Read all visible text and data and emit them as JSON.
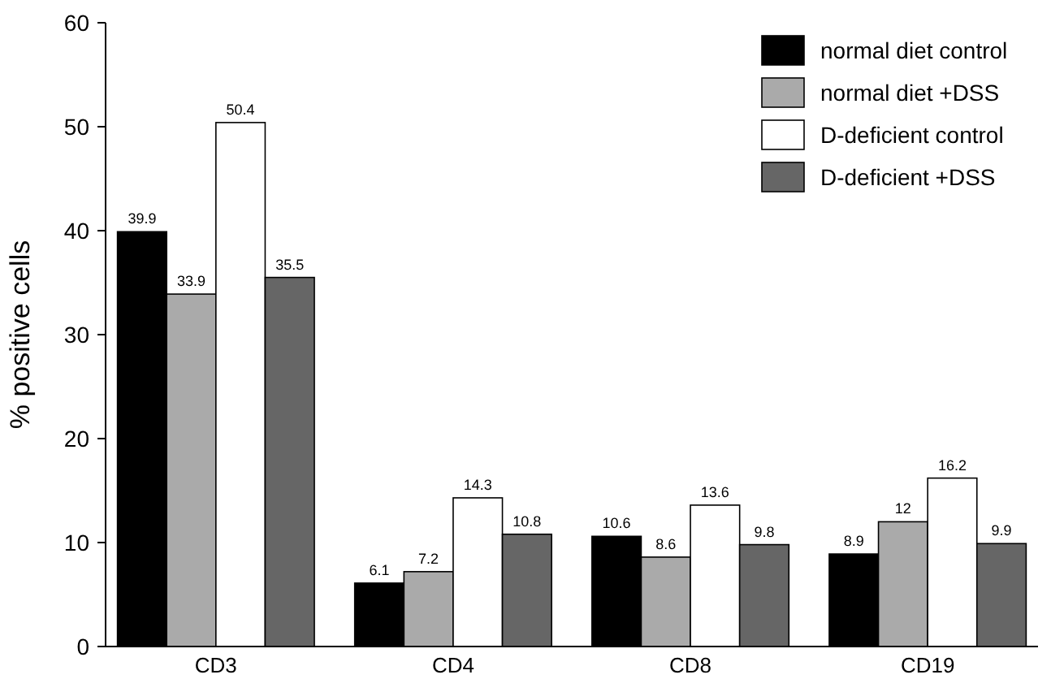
{
  "chart_data": {
    "type": "bar",
    "ylabel": "% positive cells",
    "categories": [
      "CD3",
      "CD4",
      "CD8",
      "CD19"
    ],
    "series": [
      {
        "name": "normal diet control",
        "color": "#000000",
        "values": [
          39.9,
          6.1,
          10.6,
          8.9
        ]
      },
      {
        "name": "normal diet +DSS",
        "color": "#aaaaaa",
        "values": [
          33.9,
          7.2,
          8.6,
          12
        ]
      },
      {
        "name": "D-deficient control",
        "color": "#ffffff",
        "values": [
          50.4,
          14.3,
          13.6,
          16.2
        ]
      },
      {
        "name": "D-deficient +DSS",
        "color": "#666666",
        "values": [
          35.5,
          10.8,
          9.8,
          9.9
        ]
      }
    ],
    "ylim": [
      0,
      60
    ],
    "yticks": [
      0,
      10,
      20,
      30,
      40,
      50,
      60
    ],
    "data_labels": true,
    "legend": "top right",
    "grid": false
  }
}
